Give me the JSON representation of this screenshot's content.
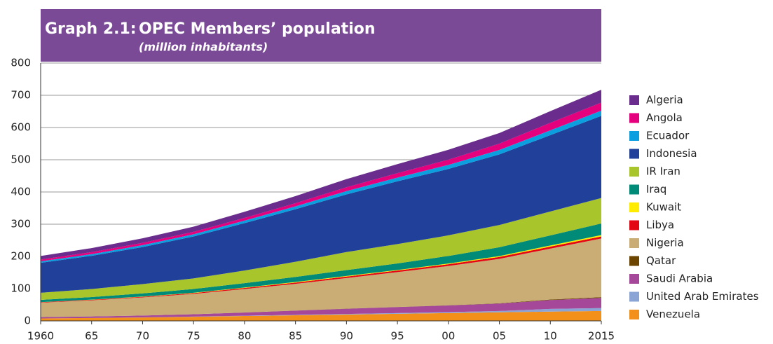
{
  "chart_data": {
    "type": "stacked_area",
    "graph_label": "Graph 2.1:",
    "title": "OPEC Members’ population",
    "subtitle": "(million inhabitants)",
    "x": [
      1960,
      1965,
      1970,
      1975,
      1980,
      1985,
      1990,
      1995,
      2000,
      2005,
      2010,
      2015
    ],
    "xlim": [
      1960,
      2015
    ],
    "xticks": [
      {
        "value": 1960,
        "label": "1960"
      },
      {
        "value": 1965,
        "label": "65"
      },
      {
        "value": 1970,
        "label": "70"
      },
      {
        "value": 1975,
        "label": "75"
      },
      {
        "value": 1980,
        "label": "80"
      },
      {
        "value": 1985,
        "label": "85"
      },
      {
        "value": 1990,
        "label": "90"
      },
      {
        "value": 1995,
        "label": "95"
      },
      {
        "value": 2000,
        "label": "00"
      },
      {
        "value": 2005,
        "label": "05"
      },
      {
        "value": 2010,
        "label": "10"
      },
      {
        "value": 2015,
        "label": "2015"
      }
    ],
    "ylim": [
      0,
      800
    ],
    "yticks": [
      0,
      100,
      200,
      300,
      400,
      500,
      600,
      700,
      800
    ],
    "grid": true,
    "legend": "right",
    "series": [
      {
        "name": "Algeria",
        "color": "#6a2d8e",
        "values": [
          11,
          12.5,
          14,
          16,
          19,
          22,
          25.3,
          28,
          30.5,
          33,
          36,
          39.5
        ]
      },
      {
        "name": "Angola",
        "color": "#e5007e",
        "values": [
          5.5,
          6.2,
          7,
          7.6,
          8.3,
          9.7,
          11.8,
          13.9,
          16.4,
          19.6,
          23.4,
          25
        ]
      },
      {
        "name": "Ecuador",
        "color": "#0b9fe0",
        "values": [
          4.5,
          5.2,
          6,
          6.9,
          8,
          9.1,
          10.3,
          11.4,
          12.6,
          13.8,
          15,
          16.3
        ]
      },
      {
        "name": "Indonesia",
        "color": "#21409a",
        "values": [
          93,
          103,
          115,
          130,
          147,
          163,
          179,
          195,
          206,
          219,
          237,
          255
        ]
      },
      {
        "name": "IR Iran",
        "color": "#a8c52b",
        "values": [
          22,
          25,
          28.8,
          33,
          39,
          47,
          56,
          60,
          64,
          69,
          74,
          79
        ]
      },
      {
        "name": "Iraq",
        "color": "#008a78",
        "values": [
          7,
          8,
          9.9,
          11.6,
          13.7,
          15.8,
          18,
          20.4,
          23.5,
          27.4,
          31.2,
          36
        ]
      },
      {
        "name": "Kuwait",
        "color": "#ffec00",
        "values": [
          0.3,
          0.5,
          0.75,
          1,
          1.4,
          1.7,
          2.1,
          1.6,
          2.2,
          2.9,
          3.6,
          4.2
        ]
      },
      {
        "name": "Libya",
        "color": "#e30613",
        "values": [
          1.3,
          1.6,
          2,
          2.5,
          3.1,
          3.8,
          4.4,
          4.9,
          5.3,
          5.8,
          6.2,
          6.3
        ]
      },
      {
        "name": "Nigeria",
        "color": "#c9ad74",
        "values": [
          45,
          50,
          56,
          63,
          73,
          83,
          95,
          108,
          122,
          138,
          158,
          182
        ]
      },
      {
        "name": "Qatar",
        "color": "#6b4500",
        "values": [
          0.05,
          0.07,
          0.11,
          0.17,
          0.22,
          0.35,
          0.48,
          0.5,
          0.6,
          0.8,
          1.7,
          2.4
        ]
      },
      {
        "name": "Saudi Arabia",
        "color": "#a6489a",
        "values": [
          4,
          4.7,
          5.8,
          7.4,
          9.7,
          13,
          16,
          18.5,
          20.5,
          23,
          27.5,
          31.5
        ]
      },
      {
        "name": "United Arab Emirates",
        "color": "#8aa4d6",
        "values": [
          0.1,
          0.15,
          0.2,
          0.5,
          1,
          1.4,
          1.8,
          2.3,
          3,
          4.1,
          8.3,
          9.2
        ]
      },
      {
        "name": "Venezuela",
        "color": "#f39019",
        "values": [
          7.5,
          8.9,
          10.6,
          12.7,
          15.1,
          17.3,
          19.7,
          22,
          24.3,
          26.6,
          28.8,
          30.6
        ]
      }
    ]
  }
}
